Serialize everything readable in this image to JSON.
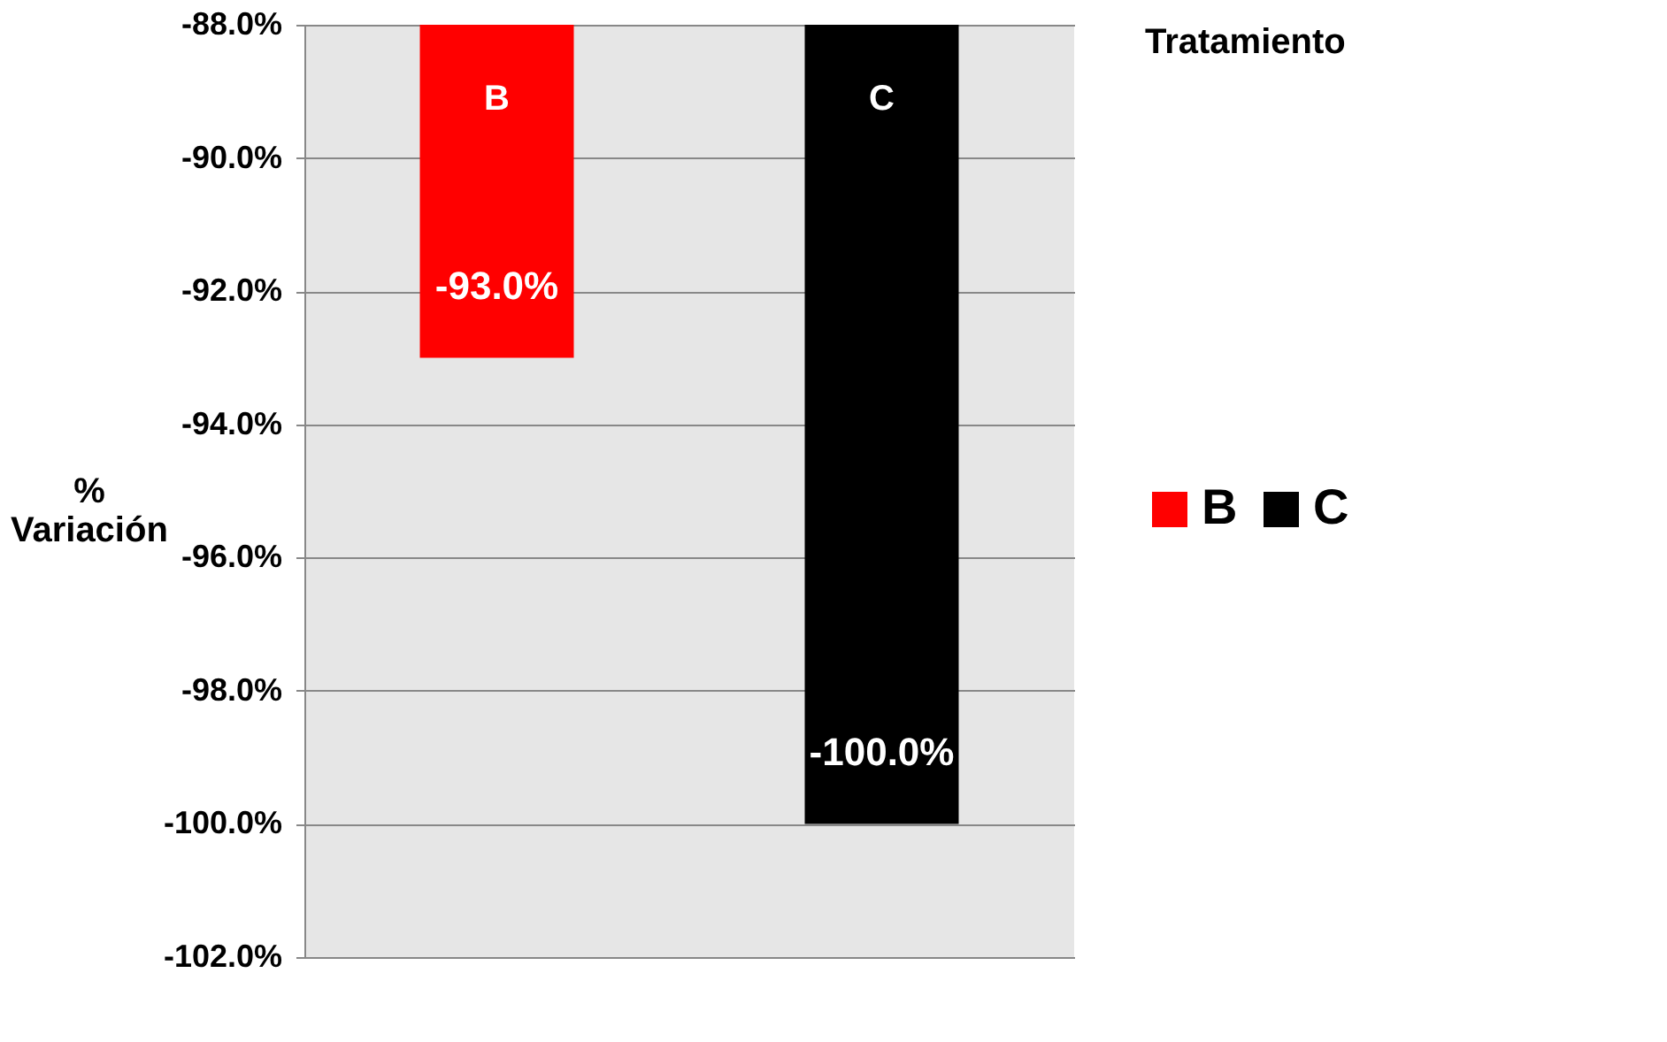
{
  "chart_data": {
    "type": "bar",
    "ylabel": "% Variación",
    "legend_title": "Tratamiento",
    "categories": [
      "B",
      "C"
    ],
    "series": [
      {
        "name": "B",
        "color": "#ff0000",
        "values": [
          -93.0,
          null
        ]
      },
      {
        "name": "C",
        "color": "#000000",
        "values": [
          null,
          -100.0
        ]
      }
    ],
    "value_labels": [
      "-93.0%",
      "-100.0%"
    ],
    "ylim": [
      -102,
      -88
    ],
    "yticks": [
      {
        "value": -88,
        "label": "-88.0%"
      },
      {
        "value": -90,
        "label": "-90.0%"
      },
      {
        "value": -92,
        "label": "-92.0%"
      },
      {
        "value": -94,
        "label": "-94.0%"
      },
      {
        "value": -96,
        "label": "-96.0%"
      },
      {
        "value": -98,
        "label": "-98.0%"
      },
      {
        "value": -100,
        "label": "-100.0%"
      },
      {
        "value": -102,
        "label": "-102.0%"
      }
    ],
    "grid": "y",
    "legend": "right"
  }
}
